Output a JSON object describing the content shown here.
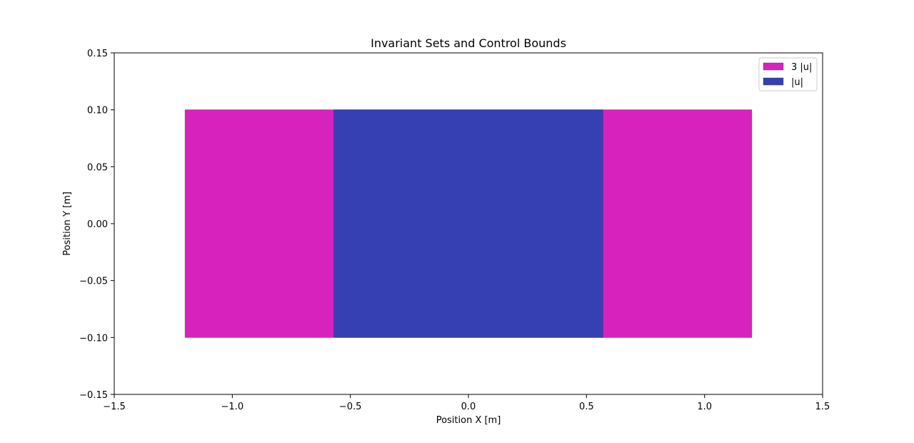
{
  "chart_data": {
    "type": "area",
    "title": "Invariant Sets and Control Bounds",
    "xlabel": "Position X [m]",
    "ylabel": "Position Y [m]",
    "xlim": [
      -1.5,
      1.5
    ],
    "ylim": [
      -0.15,
      0.15
    ],
    "xticks": [
      -1.5,
      -1.0,
      -0.5,
      0.0,
      0.5,
      1.0,
      1.5
    ],
    "xtick_labels": [
      "−1.5",
      "−1.0",
      "−0.5",
      "0.0",
      "0.5",
      "1.0",
      "1.5"
    ],
    "yticks": [
      -0.15,
      -0.1,
      -0.05,
      0.0,
      0.05,
      0.1,
      0.15
    ],
    "ytick_labels": [
      "−0.15",
      "−0.10",
      "−0.05",
      "0.00",
      "0.05",
      "0.10",
      "0.15"
    ],
    "grid": false,
    "legend_position": "top-right",
    "series": [
      {
        "name": "3 |u|",
        "color": "#d822be",
        "x_range": [
          -1.2,
          1.2
        ],
        "y_range": [
          -0.1,
          0.1
        ]
      },
      {
        "name": "|u|",
        "color": "#3640b2",
        "x_range": [
          -0.57,
          0.57
        ],
        "y_range": [
          -0.1,
          0.1
        ]
      }
    ]
  }
}
